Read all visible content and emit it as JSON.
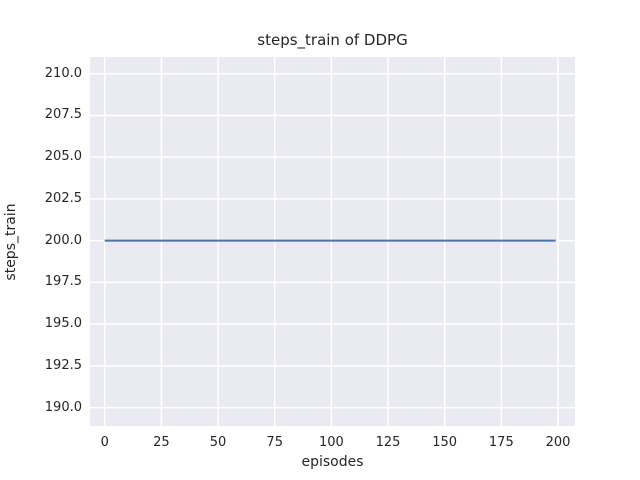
{
  "chart_data": {
    "type": "line",
    "title": "steps_train of DDPG",
    "xlabel": "episodes",
    "ylabel": "steps_train",
    "xlim": [
      -6.5,
      207.5
    ],
    "ylim": [
      188.9,
      211.0
    ],
    "x_ticks": [
      0,
      25,
      50,
      75,
      100,
      125,
      150,
      175,
      200
    ],
    "x_tick_labels": [
      "0",
      "25",
      "50",
      "75",
      "100",
      "125",
      "150",
      "175",
      "200"
    ],
    "y_ticks": [
      190.0,
      192.5,
      195.0,
      197.5,
      200.0,
      202.5,
      205.0,
      207.5,
      210.0
    ],
    "y_tick_labels": [
      "190.0",
      "192.5",
      "195.0",
      "197.5",
      "200.0",
      "202.5",
      "205.0",
      "207.5",
      "210.0"
    ],
    "grid": true,
    "legend": false,
    "series": [
      {
        "name": "steps_train",
        "x": [
          0,
          199
        ],
        "y": [
          200,
          200
        ],
        "color": "#4c72b0",
        "line_width": 2
      }
    ],
    "colors": {
      "plot_background": "#eaeaf2",
      "grid": "#ffffff",
      "text": "#262626",
      "figure_background": "#ffffff"
    }
  }
}
